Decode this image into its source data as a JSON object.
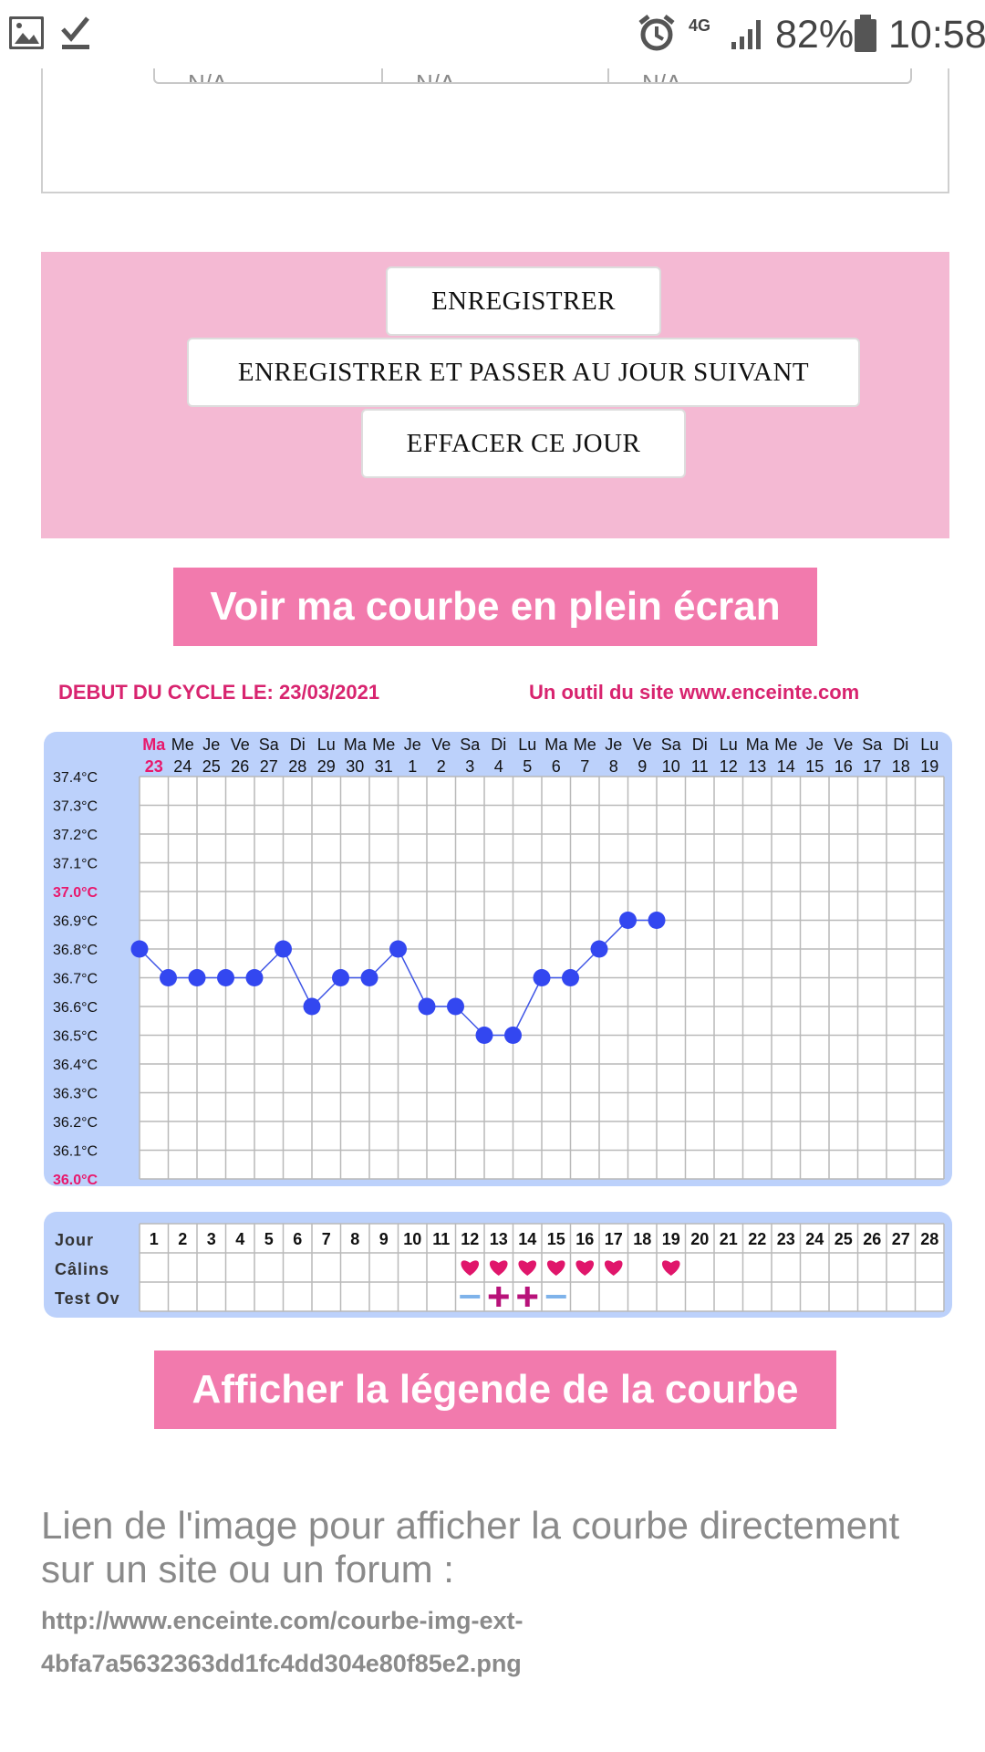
{
  "status_bar": {
    "battery": "82%",
    "time": "10:58",
    "network": "4G",
    "icons": [
      "image-icon",
      "check-icon",
      "alarm-icon",
      "signal-icon",
      "battery-icon"
    ]
  },
  "top_card": {
    "cells": [
      "N/A",
      "N/A",
      "N/A"
    ]
  },
  "actions": {
    "save": "ENREGISTRER",
    "save_next": "ENREGISTRER ET PASSER AU JOUR SUIVANT",
    "clear_day": "EFFACER CE JOUR"
  },
  "fullscreen_button": "Voir ma courbe en plein écran",
  "chart_header": {
    "cycle_start": "DEBUT DU CYCLE LE: 23/03/2021",
    "credit": "Un outil du site www.enceinte.com"
  },
  "chart_data": {
    "type": "line",
    "day_names": [
      "Ma",
      "Me",
      "Je",
      "Ve",
      "Sa",
      "Di",
      "Lu",
      "Ma",
      "Me",
      "Je",
      "Ve",
      "Sa",
      "Di",
      "Lu",
      "Ma",
      "Me",
      "Je",
      "Ve",
      "Sa",
      "Di",
      "Lu",
      "Ma",
      "Me",
      "Je",
      "Ve",
      "Sa",
      "Di",
      "Lu"
    ],
    "day_numbers": [
      "23",
      "24",
      "25",
      "26",
      "27",
      "28",
      "29",
      "30",
      "31",
      "1",
      "2",
      "3",
      "4",
      "5",
      "6",
      "7",
      "8",
      "9",
      "10",
      "11",
      "12",
      "13",
      "14",
      "15",
      "16",
      "17",
      "18",
      "19"
    ],
    "y_ticks": [
      "37.4°C",
      "37.3°C",
      "37.2°C",
      "37.1°C",
      "37.0°C",
      "36.9°C",
      "36.8°C",
      "36.7°C",
      "36.6°C",
      "36.5°C",
      "36.4°C",
      "36.3°C",
      "36.2°C",
      "36.1°C",
      "36.0°C"
    ],
    "ylim": [
      36.0,
      37.4
    ],
    "values": [
      36.8,
      36.7,
      36.7,
      36.7,
      36.7,
      36.8,
      36.6,
      36.7,
      36.7,
      36.8,
      36.6,
      36.6,
      36.5,
      36.5,
      36.7,
      36.7,
      36.8,
      36.9,
      36.9
    ],
    "highlight_color": "#e8186c",
    "point_color": "#3347f0",
    "line_color": "#4056e6",
    "grid": true
  },
  "day_table": {
    "row_labels": [
      "Jour",
      "Câlins",
      "Test Ov"
    ],
    "days": [
      "1",
      "2",
      "3",
      "4",
      "5",
      "6",
      "7",
      "8",
      "9",
      "10",
      "11",
      "12",
      "13",
      "14",
      "15",
      "16",
      "17",
      "18",
      "19",
      "20",
      "21",
      "22",
      "23",
      "24",
      "25",
      "26",
      "27",
      "28"
    ],
    "calins_days": [
      12,
      13,
      14,
      15,
      16,
      17,
      19
    ],
    "test_ov": [
      {
        "day": 12,
        "result": "negative"
      },
      {
        "day": 13,
        "result": "positive"
      },
      {
        "day": 14,
        "result": "positive"
      },
      {
        "day": 15,
        "result": "negative"
      }
    ]
  },
  "legend_button": "Afficher la légende de la courbe",
  "image_link": {
    "title": "Lien de l'image pour afficher la courbe directement sur un site ou un forum :",
    "url": "http://www.enceinte.com/courbe-img-ext-4bfa7a5632363dd1fc4dd304e80f85e2.png"
  }
}
